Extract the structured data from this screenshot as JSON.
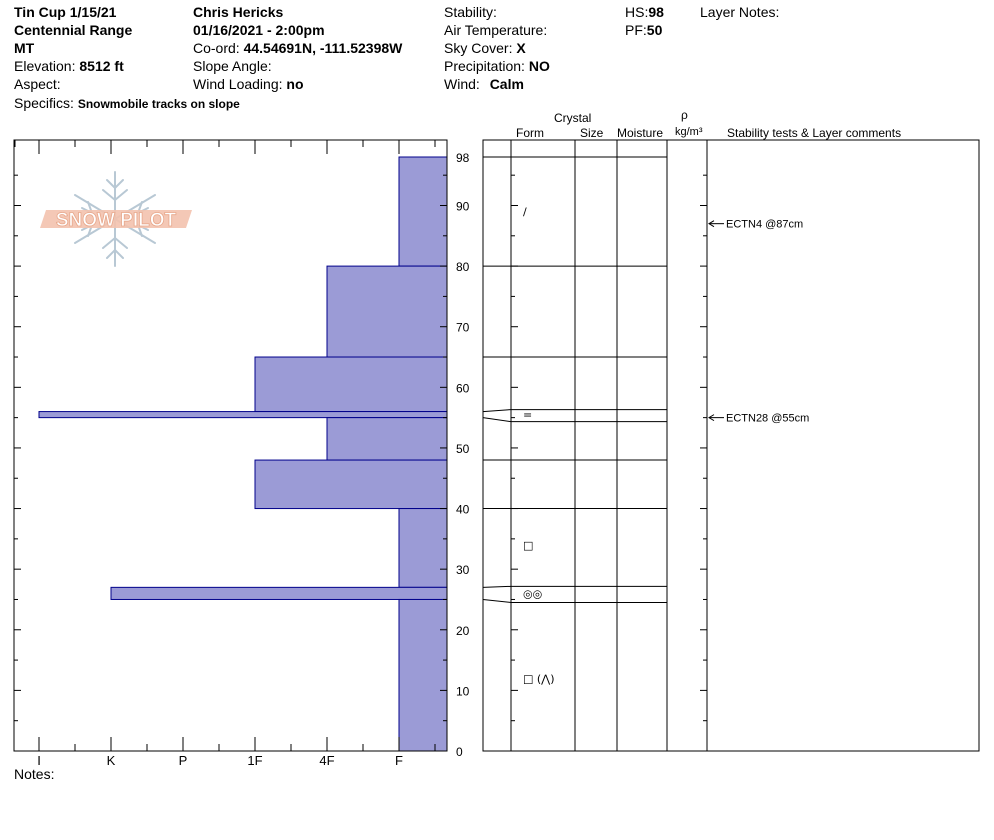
{
  "header": {
    "site": "Tin Cup 1/15/21",
    "range": "Centennial Range",
    "state": "MT",
    "elevation_label": "Elevation:",
    "elevation": "8512 ft",
    "aspect_label": "Aspect:",
    "specifics_label": "Specifics:",
    "specifics": "Snowmobile tracks on slope",
    "observer": "Chris Hericks",
    "datetime": "01/16/2021 - 2:00pm",
    "coord_label": "Co-ord:",
    "coord": "44.54691N, -111.52398W",
    "slope_label": "Slope Angle:",
    "wind_loading_label": "Wind Loading:",
    "wind_loading": "no",
    "stability_label": "Stability:",
    "air_temp_label": "Air Temperature:",
    "sky_label": "Sky Cover:",
    "sky": "X",
    "precip_label": "Precipitation:",
    "precip": "NO",
    "wind_label": "Wind:",
    "wind": "Calm",
    "hs_label": "HS:",
    "hs": "98",
    "pf_label": "PF:",
    "pf": "50",
    "layer_notes_label": "Layer Notes:"
  },
  "columns": {
    "crystal": "Crystal",
    "form": "Form",
    "size": "Size",
    "moisture": "Moisture",
    "rho": "ρ",
    "density_unit": "kg/m³",
    "stability": "Stability tests & Layer comments"
  },
  "notes_label": "Notes:",
  "logo_text": "SNOW PILOT",
  "chart_data": {
    "type": "bar",
    "orientation": "horizontal",
    "y_range": [
      0,
      98
    ],
    "y_ticks": [
      0,
      10,
      20,
      30,
      40,
      50,
      60,
      70,
      80,
      90,
      98
    ],
    "hardness_scale": [
      "I",
      "K",
      "P",
      "1F",
      "4F",
      "F"
    ],
    "hardness_values": {
      "F": 1,
      "4F": 2,
      "1F": 3,
      "P": 4,
      "K": 5,
      "I": 6
    },
    "layers": [
      {
        "bottom": 80,
        "top": 98,
        "hardness": "F"
      },
      {
        "bottom": 65,
        "top": 80,
        "hardness": "4F"
      },
      {
        "bottom": 56,
        "top": 65,
        "hardness": "1F"
      },
      {
        "bottom": 55,
        "top": 56,
        "hardness": "I"
      },
      {
        "bottom": 48,
        "top": 55,
        "hardness": "4F"
      },
      {
        "bottom": 40,
        "top": 48,
        "hardness": "1F"
      },
      {
        "bottom": 27,
        "top": 40,
        "hardness": "F"
      },
      {
        "bottom": 25,
        "top": 27,
        "hardness": "K"
      },
      {
        "bottom": 0,
        "top": 25,
        "hardness": "F"
      }
    ],
    "layer_boundaries": [
      98,
      80,
      65,
      56,
      55,
      48,
      40,
      27,
      25
    ],
    "form_symbols": [
      {
        "depth": 89,
        "symbol": "/"
      },
      {
        "depth": 55.5,
        "symbol": "="
      },
      {
        "depth": 34,
        "symbol": "□"
      },
      {
        "depth": 26,
        "symbol": "◎◎"
      },
      {
        "depth": 12,
        "symbol": "□ (⋀)"
      }
    ],
    "stability_tests": [
      {
        "depth": 87,
        "label": "ECTN4 @87cm"
      },
      {
        "depth": 55,
        "label": "ECTN28 @55cm"
      }
    ],
    "colors": {
      "bar": "#9b9bd6",
      "bar_edge": "#00008b",
      "logo": "#f0b8a0",
      "flake": "#b8c8d4"
    }
  }
}
